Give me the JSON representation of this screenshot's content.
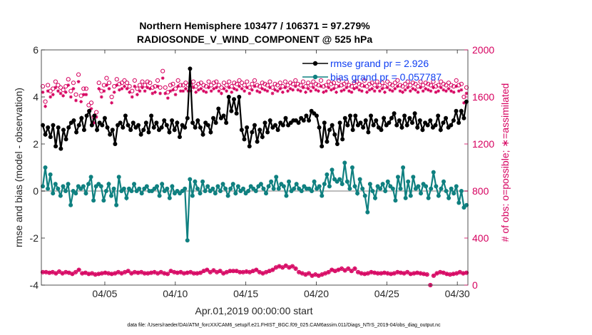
{
  "chart_data": {
    "type": "line",
    "title_line1": "Northern Hemisphere 103477 / 106371 = 97.279%",
    "title_line2": "RADIOSONDE_V_WIND_COMPONENT @ 525 hPa",
    "ylabel_left": "rmse and bias (model - observation)",
    "ylabel_right": "# of obs: o=possible; ∗=assimilated",
    "xlabel": "Apr.01,2019 00:00:00 start",
    "footnote": "data file: /Users/raeder/DAI/ATM_forcXX/CAM6_setup/f.e21.FHIST_BGC.f09_025.CAM6assim.011/Diags_NTrS_2019-04/obs_diag_output.nc",
    "xlim": [
      0.5,
      30.75
    ],
    "ylim_left": [
      -4,
      6
    ],
    "ylim_right": [
      0,
      2000
    ],
    "left_ticks": [
      -4,
      -2,
      0,
      2,
      4,
      6
    ],
    "left_tick_labels": [
      "-4",
      "-2",
      "0",
      "2",
      "4",
      "6"
    ],
    "right_ticks": [
      0,
      400,
      800,
      1200,
      1600,
      2000
    ],
    "right_tick_labels": [
      "0",
      "400",
      "800",
      "1200",
      "1600",
      "2000"
    ],
    "x_ticks": [
      5,
      10,
      15,
      20,
      25,
      30
    ],
    "x_tick_labels": [
      "04/05",
      "04/10",
      "04/15",
      "04/20",
      "04/25",
      "04/30"
    ],
    "legend": [
      "rmse grand pr = 2.926",
      "bias grand pr = 0.057787"
    ],
    "colors": {
      "rmse": "#000000",
      "bias": "#0f8080",
      "obs": "#d6005f",
      "zero": "#bdbdbd",
      "legend_text": "#0f3ff2"
    },
    "series": [
      {
        "name": "rmse",
        "values": [
          2.8,
          2.4,
          2.7,
          2.3,
          2.8,
          1.9,
          2.7,
          1.8,
          2.6,
          2.2,
          2.7,
          2.9,
          3.0,
          2.5,
          2.8,
          3.1,
          2.6,
          3.2,
          3.4,
          2.8,
          3.2,
          2.6,
          2.9,
          2.8,
          3.1,
          2.7,
          2.4,
          2.6,
          2.0,
          2.8,
          2.9,
          2.7,
          3.2,
          2.8,
          2.6,
          2.9,
          2.7,
          2.8,
          2.4,
          2.6,
          2.9,
          2.5,
          3.2,
          2.7,
          2.9,
          2.6,
          2.7,
          3.0,
          2.8,
          2.5,
          3.0,
          2.6,
          2.9,
          2.3,
          2.8,
          2.7,
          3.1,
          5.2,
          2.9,
          2.7,
          3.0,
          2.7,
          2.4,
          2.9,
          2.8,
          2.5,
          3.1,
          2.9,
          3.5,
          3.1,
          3.2,
          2.9,
          4.0,
          3.4,
          3.9,
          3.3,
          4.0,
          2.6,
          2.2,
          2.7,
          1.9,
          2.5,
          2.8,
          2.1,
          2.6,
          2.3,
          2.9,
          2.5,
          3.0,
          2.7,
          2.8,
          2.6,
          2.9,
          2.8,
          3.1,
          2.8,
          2.9,
          3.0,
          3.0,
          2.9,
          3.1,
          3.0,
          3.2,
          3.0,
          3.4,
          3.3,
          3.2,
          2.7,
          1.9,
          2.9,
          2.1,
          2.6,
          2.8,
          2.4,
          2.0,
          2.9,
          2.2,
          3.1,
          2.8,
          3.2,
          2.6,
          3.2,
          2.8,
          2.9,
          2.7,
          3.0,
          2.5,
          3.2,
          2.8,
          3.0,
          2.7,
          2.6,
          3.1,
          2.8,
          2.9,
          3.1,
          3.3,
          2.8,
          3.0,
          2.7,
          3.2,
          2.8,
          3.1,
          2.9,
          3.3,
          2.7,
          3.0,
          2.6,
          2.9,
          2.8,
          3.0,
          2.7,
          2.8,
          3.2,
          2.6,
          2.9,
          3.1,
          2.7,
          2.8,
          3.0,
          3.4,
          2.9,
          3.4,
          3.1,
          3.8
        ]
      },
      {
        "name": "bias",
        "values": [
          0.2,
          1.0,
          0.1,
          0.7,
          -0.1,
          0.3,
          0.1,
          -0.2,
          0.2,
          0.0,
          0.3,
          -0.6,
          0.0,
          -0.1,
          0.2,
          0.1,
          0.2,
          -0.1,
          0.3,
          0.6,
          -0.4,
          0.2,
          0.3,
          0.2,
          -0.4,
          0.0,
          0.3,
          -0.2,
          0.1,
          -0.6,
          0.6,
          0.0,
          0.1,
          -0.3,
          0.1,
          0.0,
          0.3,
          0.0,
          0.1,
          -0.1,
          0.1,
          0.2,
          0.0,
          0.0,
          0.1,
          0.2,
          -0.2,
          0.3,
          0.0,
          0.1,
          -0.3,
          0.2,
          -0.1,
          0.0,
          -0.1,
          0.0,
          0.1,
          -2.1,
          0.5,
          -0.2,
          0.4,
          0.1,
          -0.1,
          0.4,
          0.0,
          0.2,
          0.0,
          0.1,
          -0.1,
          0.2,
          0.0,
          0.3,
          0.1,
          -0.2,
          0.1,
          0.3,
          -0.1,
          0.2,
          0.0,
          0.1,
          -0.1,
          0.0,
          0.2,
          0.1,
          0.0,
          0.2,
          0.3,
          0.1,
          -0.1,
          0.2,
          0.4,
          0.1,
          0.6,
          0.1,
          0.3,
          0.2,
          -0.2,
          0.4,
          0.0,
          0.1,
          0.3,
          0.1,
          0.0,
          0.2,
          0.1,
          0.1,
          0.0,
          0.4,
          0.1,
          0.2,
          -0.2,
          0.3,
          0.7,
          0.2,
          0.9,
          0.5,
          0.4,
          0.5,
          0.3,
          1.2,
          0.4,
          0.1,
          1.0,
          0.2,
          -0.1,
          0.5,
          0.1,
          -0.2,
          -0.9,
          0.3,
          0.0,
          -0.3,
          0.2,
          0.1,
          0.3,
          0.0,
          0.4,
          0.2,
          0.1,
          -0.4,
          0.6,
          0.1,
          1.0,
          -0.3,
          0.4,
          -0.2,
          0.6,
          0.1,
          0.2,
          -0.1,
          0.3,
          0.2,
          -0.3,
          0.1,
          0.8,
          0.2,
          -0.2,
          0.1,
          0.4,
          0.0,
          -0.3,
          0.1,
          -0.1,
          0.2,
          -0.5,
          0.0,
          -0.7,
          -0.6
        ]
      },
      {
        "name": "obs_possible",
        "values": [
          1690,
          1560,
          1700,
          1650,
          1670,
          1730,
          1700,
          1680,
          1660,
          1690,
          1750,
          1650,
          1720,
          1620,
          1790,
          1610,
          1670,
          1670,
          1530,
          1550,
          1430,
          1470,
          1720,
          1650,
          1700,
          1760,
          1720,
          1600,
          1690,
          1750,
          1710,
          1720,
          1740,
          1720,
          1690,
          1650,
          1740,
          1670,
          1700,
          1730,
          1700,
          1730,
          1720,
          1680,
          1690,
          1740,
          1680,
          1820,
          1680,
          1640,
          1700,
          1710,
          1670,
          1740,
          1700,
          1700,
          1720,
          1700,
          1700,
          1730,
          1690,
          1710,
          1720,
          1700,
          1690,
          1730,
          1700,
          1720,
          1730,
          1700,
          1680,
          1720,
          1700,
          1730,
          1690,
          1720,
          1710,
          1740,
          1720,
          1700,
          1730,
          1680,
          1710,
          1740,
          1700,
          1690,
          1720,
          1710,
          1700,
          1730,
          1680,
          1710,
          1700,
          1720,
          1690,
          1730,
          1700,
          1720,
          1710,
          1740,
          1710,
          1700,
          1730,
          1690,
          1720,
          1700,
          1730,
          1710,
          1700,
          1740,
          1690,
          1700,
          1730,
          1710,
          1720,
          1690,
          1740,
          1700,
          1710,
          1730,
          1700,
          1690,
          1720,
          1730,
          1710,
          1700,
          1740,
          1690,
          1710,
          1720,
          1700,
          1730,
          1700,
          1720,
          1690,
          1730,
          1710,
          1700,
          1720,
          1740,
          1700,
          1690,
          1710,
          1730,
          1700,
          1720,
          1710,
          1690,
          1730,
          1700,
          1720,
          1710,
          1700,
          1730,
          1690,
          1700,
          1730,
          1710,
          1700,
          1720,
          1700,
          1690,
          1740,
          1700,
          1710,
          1600,
          1680
        ]
      },
      {
        "name": "obs_assimilated",
        "values": [
          1640,
          1520,
          1650,
          1600,
          1620,
          1680,
          1650,
          1630,
          1610,
          1640,
          1700,
          1600,
          1670,
          1570,
          1730,
          1560,
          1620,
          1620,
          1480,
          1500,
          1380,
          1430,
          1670,
          1600,
          1650,
          1700,
          1670,
          1550,
          1640,
          1700,
          1660,
          1670,
          1690,
          1670,
          1640,
          1600,
          1690,
          1620,
          1650,
          1680,
          1650,
          1680,
          1670,
          1630,
          1640,
          1690,
          1630,
          1760,
          1630,
          1590,
          1650,
          1660,
          1620,
          1690,
          1650,
          1650,
          1670,
          1650,
          1650,
          1680,
          1640,
          1660,
          1670,
          1650,
          1640,
          1680,
          1650,
          1670,
          1680,
          1650,
          1630,
          1670,
          1650,
          1680,
          1640,
          1670,
          1660,
          1690,
          1670,
          1650,
          1680,
          1630,
          1660,
          1690,
          1650,
          1640,
          1670,
          1660,
          1650,
          1680,
          1630,
          1660,
          1650,
          1670,
          1640,
          1680,
          1650,
          1670,
          1660,
          1690,
          1660,
          1650,
          1680,
          1640,
          1670,
          1650,
          1680,
          1660,
          1650,
          1690,
          1640,
          1650,
          1680,
          1660,
          1670,
          1640,
          1690,
          1650,
          1660,
          1680,
          1650,
          1640,
          1670,
          1680,
          1660,
          1650,
          1690,
          1640,
          1660,
          1670,
          1650,
          1680,
          1650,
          1670,
          1640,
          1680,
          1660,
          1650,
          1670,
          1690,
          1650,
          1640,
          1660,
          1680,
          1650,
          1670,
          1660,
          1640,
          1680,
          1650,
          1670,
          1660,
          1650,
          1680,
          1640,
          1650,
          1680,
          1660,
          1650,
          1670,
          1650,
          1640,
          1690,
          1650,
          1660,
          1550,
          1630
        ]
      },
      {
        "name": "obs_low",
        "values": [
          110,
          110,
          105,
          110,
          100,
          115,
          100,
          110,
          105,
          95,
          110,
          130,
          100,
          105,
          95,
          100,
          90,
          95,
          100,
          105,
          100,
          95,
          100,
          110,
          100,
          110,
          120,
          100,
          110,
          105,
          110,
          100,
          100,
          105,
          110,
          100,
          110,
          100,
          95,
          120,
          110,
          105,
          110,
          100,
          105,
          110,
          100,
          100,
          105,
          120,
          130,
          110,
          125,
          110,
          120,
          100,
          110,
          120,
          120,
          120,
          110,
          110,
          115,
          110,
          120,
          130,
          110,
          100,
          110,
          120,
          130,
          150,
          160,
          150,
          165,
          150,
          160,
          140,
          110,
          100,
          90,
          100,
          80,
          90,
          80,
          90,
          100,
          110,
          130,
          120,
          130,
          140,
          125,
          140,
          120,
          140,
          110,
          100,
          95,
          100,
          110,
          105,
          100,
          100,
          105,
          100,
          95,
          100,
          110,
          105,
          100,
          110,
          95,
          100,
          105,
          100,
          95,
          90,
          0,
          80,
          100,
          110,
          105,
          95,
          90,
          95,
          100,
          110,
          100,
          105
        ]
      }
    ]
  }
}
